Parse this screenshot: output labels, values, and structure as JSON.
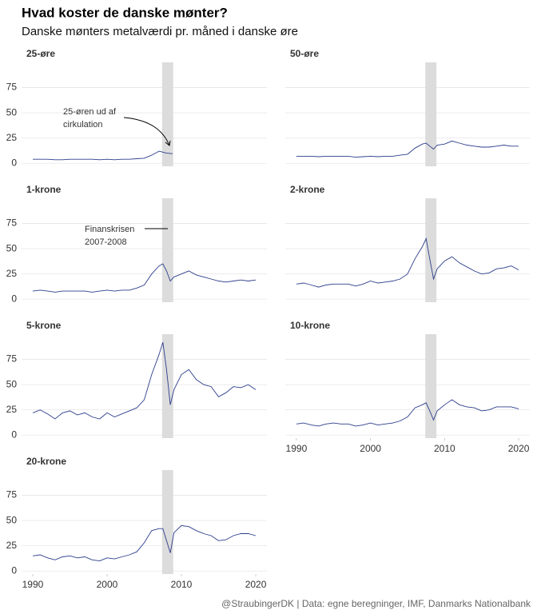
{
  "title": "Hvad koster de danske mønter?",
  "subtitle": "Danske mønters metalværdi pr. måned i danske øre",
  "caption": "@StraubingerDK | Data: egne beregninger, IMF, Danmarks Nationalbank",
  "chart_data": [
    {
      "type": "line",
      "title": "25-øre",
      "color": "#2c3e8c",
      "xlim": [
        1988.5,
        2021.5
      ],
      "ylim": [
        -3,
        100
      ],
      "yticks": [
        0,
        25,
        50,
        75
      ],
      "shade": [
        2007.4,
        2008.9
      ],
      "annotation": [
        "25-øren ud af",
        "cirkulation"
      ],
      "x": [
        1990,
        1991,
        1992,
        1993,
        1994,
        1995,
        1996,
        1997,
        1998,
        1999,
        2000,
        2001,
        2002,
        2003,
        2004,
        2005,
        2006,
        2007,
        2007.5,
        2008,
        2008.8
      ],
      "values": [
        4,
        4,
        4,
        3.5,
        3.5,
        4,
        4,
        4,
        4,
        3.5,
        4,
        3.5,
        4,
        4,
        4.5,
        5,
        8,
        12,
        11,
        10,
        9.5
      ]
    },
    {
      "type": "line",
      "title": "50-øre",
      "color": "#2c3e8c",
      "xlim": [
        1988.5,
        2021.5
      ],
      "ylim": [
        -3,
        100
      ],
      "yticks": [
        0,
        25,
        50,
        75
      ],
      "shade": [
        2007.4,
        2008.9
      ],
      "x": [
        1990,
        1991,
        1992,
        1993,
        1994,
        1995,
        1996,
        1997,
        1998,
        1999,
        2000,
        2001,
        2002,
        2003,
        2004,
        2005,
        2006,
        2007,
        2007.5,
        2008,
        2008.5,
        2009,
        2010,
        2011,
        2012,
        2013,
        2014,
        2015,
        2016,
        2017,
        2018,
        2019,
        2020
      ],
      "values": [
        7,
        7,
        7,
        6.5,
        7,
        7,
        7,
        7,
        6,
        6.5,
        7,
        6.5,
        7,
        7,
        8,
        9,
        15,
        19,
        20,
        17,
        14,
        18,
        19,
        22,
        20,
        18,
        17,
        16,
        16,
        17,
        18,
        17,
        17
      ]
    },
    {
      "type": "line",
      "title": "1-krone",
      "color": "#2c3e8c",
      "xlim": [
        1988.5,
        2021.5
      ],
      "ylim": [
        -3,
        100
      ],
      "yticks": [
        0,
        25,
        50,
        75
      ],
      "shade": [
        2007.4,
        2008.9
      ],
      "annotation": [
        "Finanskrisen",
        "2007-2008"
      ],
      "x": [
        1990,
        1991,
        1992,
        1993,
        1994,
        1995,
        1996,
        1997,
        1998,
        1999,
        2000,
        2001,
        2002,
        2003,
        2004,
        2005,
        2006,
        2007,
        2007.5,
        2008,
        2008.5,
        2009,
        2010,
        2011,
        2012,
        2013,
        2014,
        2015,
        2016,
        2017,
        2018,
        2019,
        2020
      ],
      "values": [
        8,
        9,
        8,
        7,
        8,
        8,
        8,
        8,
        7,
        8,
        9,
        8,
        9,
        9,
        11,
        14,
        25,
        33,
        35,
        28,
        18,
        22,
        25,
        28,
        24,
        22,
        20,
        18,
        17,
        18,
        19,
        18,
        19
      ]
    },
    {
      "type": "line",
      "title": "2-krone",
      "color": "#2c3e8c",
      "xlim": [
        1988.5,
        2021.5
      ],
      "ylim": [
        -3,
        100
      ],
      "yticks": [
        0,
        25,
        50,
        75
      ],
      "shade": [
        2007.4,
        2008.9
      ],
      "x": [
        1990,
        1991,
        1992,
        1993,
        1994,
        1995,
        1996,
        1997,
        1998,
        1999,
        2000,
        2001,
        2002,
        2003,
        2004,
        2005,
        2006,
        2007,
        2007.5,
        2008,
        2008.5,
        2009,
        2010,
        2011,
        2012,
        2013,
        2014,
        2015,
        2016,
        2017,
        2018,
        2019,
        2020
      ],
      "values": [
        15,
        16,
        14,
        12,
        14,
        15,
        15,
        15,
        13,
        15,
        18,
        16,
        17,
        18,
        20,
        25,
        40,
        52,
        60,
        40,
        20,
        30,
        38,
        42,
        36,
        32,
        28,
        25,
        26,
        30,
        31,
        33,
        29
      ]
    },
    {
      "type": "line",
      "title": "5-krone",
      "color": "#2c3e8c",
      "xlim": [
        1988.5,
        2021.5
      ],
      "ylim": [
        -3,
        100
      ],
      "yticks": [
        0,
        25,
        50,
        75
      ],
      "shade": [
        2007.4,
        2008.9
      ],
      "x": [
        1990,
        1991,
        1992,
        1993,
        1994,
        1995,
        1996,
        1997,
        1998,
        1999,
        2000,
        2001,
        2002,
        2003,
        2004,
        2005,
        2006,
        2007,
        2007.5,
        2008,
        2008.5,
        2009,
        2010,
        2011,
        2012,
        2013,
        2014,
        2015,
        2016,
        2017,
        2018,
        2019,
        2020
      ],
      "values": [
        22,
        25,
        21,
        16,
        22,
        24,
        20,
        22,
        18,
        16,
        22,
        18,
        21,
        24,
        27,
        35,
        60,
        80,
        92,
        65,
        30,
        45,
        60,
        65,
        55,
        50,
        48,
        38,
        42,
        48,
        47,
        50,
        45
      ]
    },
    {
      "type": "line",
      "title": "10-krone",
      "color": "#2c3e8c",
      "xlim": [
        1988.5,
        2021.5
      ],
      "ylim": [
        -3,
        100
      ],
      "yticks": [
        0,
        25,
        50,
        75
      ],
      "xticks": [
        1990,
        2000,
        2010,
        2020
      ],
      "shade": [
        2007.4,
        2008.9
      ],
      "x": [
        1990,
        1991,
        1992,
        1993,
        1994,
        1995,
        1996,
        1997,
        1998,
        1999,
        2000,
        2001,
        2002,
        2003,
        2004,
        2005,
        2006,
        2007,
        2007.5,
        2008,
        2008.5,
        2009,
        2010,
        2011,
        2012,
        2013,
        2014,
        2015,
        2016,
        2017,
        2018,
        2019,
        2020
      ],
      "values": [
        11,
        12,
        10,
        9,
        11,
        12,
        11,
        11,
        9,
        10,
        12,
        10,
        11,
        12,
        14,
        18,
        27,
        30,
        32,
        24,
        15,
        24,
        30,
        35,
        30,
        28,
        27,
        24,
        25,
        28,
        28,
        28,
        26
      ]
    },
    {
      "type": "line",
      "title": "20-krone",
      "color": "#2c3e8c",
      "xlim": [
        1988.5,
        2021.5
      ],
      "ylim": [
        -3,
        100
      ],
      "yticks": [
        0,
        25,
        50,
        75
      ],
      "xticks": [
        1990,
        2000,
        2010,
        2020
      ],
      "shade": [
        2007.4,
        2008.9
      ],
      "x": [
        1990,
        1991,
        1992,
        1993,
        1994,
        1995,
        1996,
        1997,
        1998,
        1999,
        2000,
        2001,
        2002,
        2003,
        2004,
        2005,
        2006,
        2007,
        2007.5,
        2008,
        2008.5,
        2009,
        2010,
        2011,
        2012,
        2013,
        2014,
        2015,
        2016,
        2017,
        2018,
        2019,
        2020
      ],
      "values": [
        15,
        16,
        13,
        11,
        14,
        15,
        13,
        14,
        11,
        10,
        13,
        12,
        14,
        16,
        19,
        28,
        40,
        42,
        42,
        30,
        18,
        38,
        45,
        44,
        40,
        37,
        35,
        30,
        31,
        35,
        37,
        37,
        35
      ]
    }
  ]
}
